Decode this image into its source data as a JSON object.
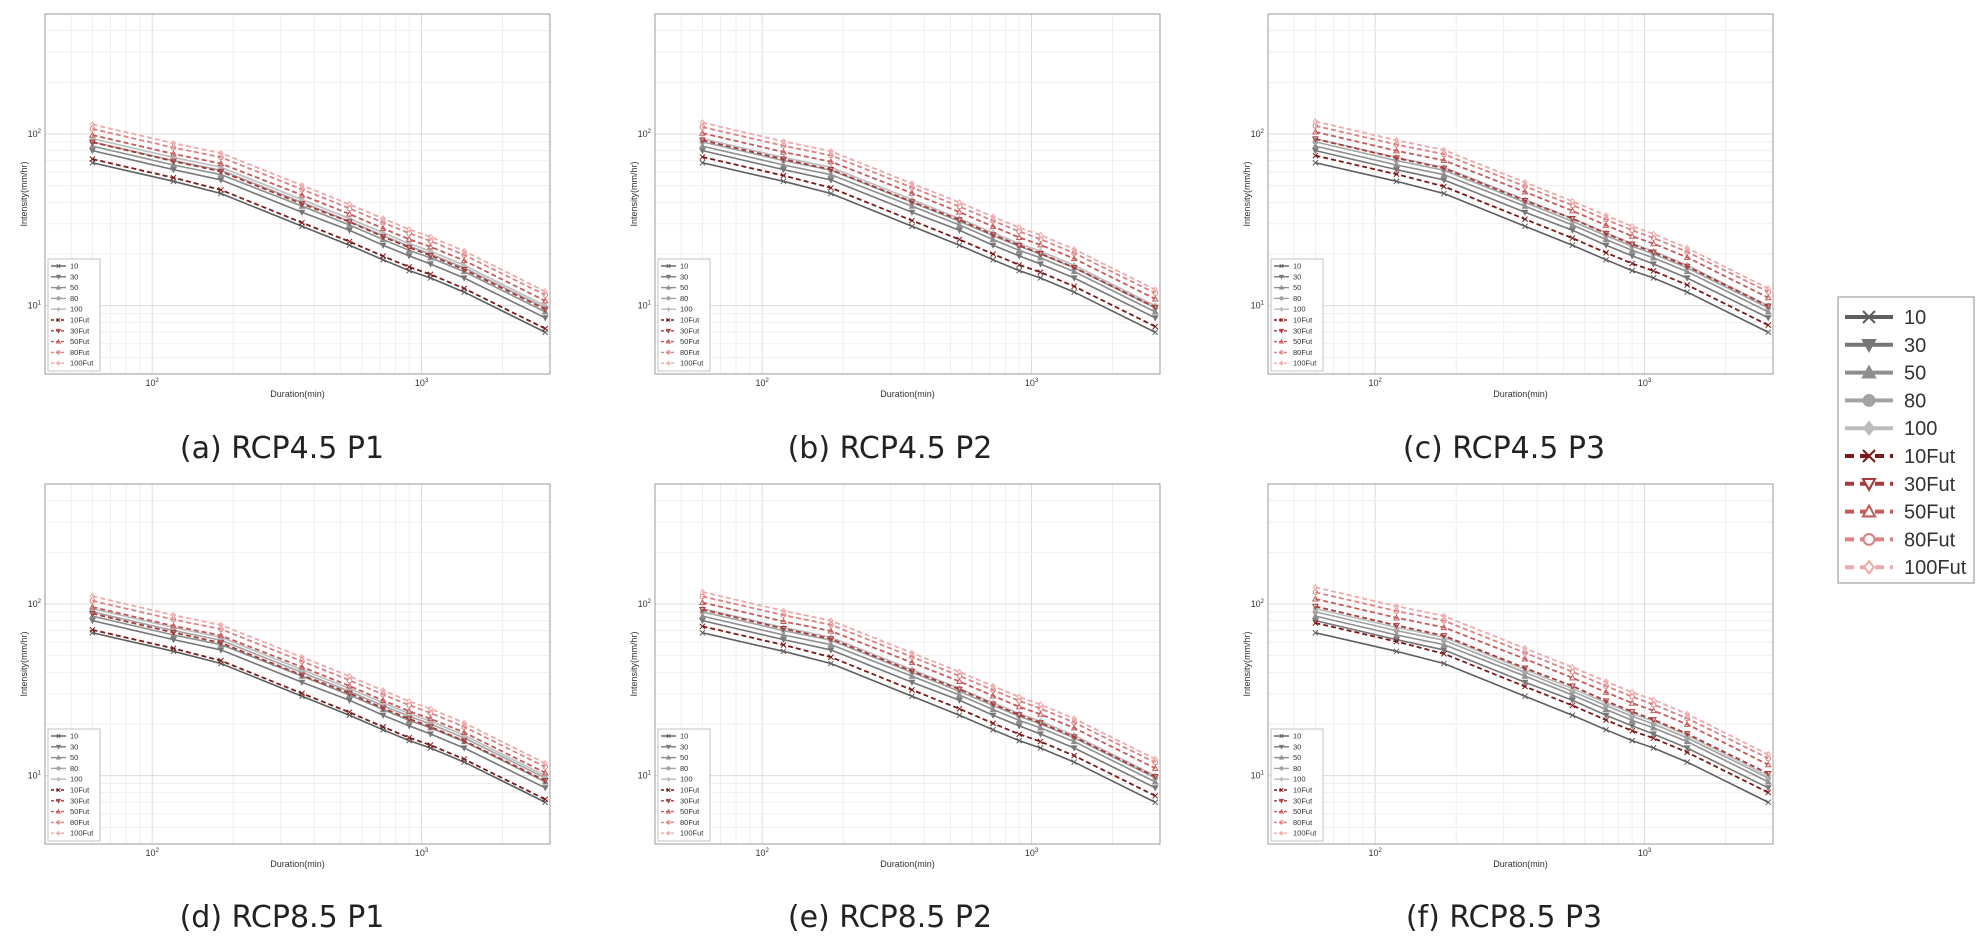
{
  "chart_data": {
    "type": "line",
    "scale": "log-log",
    "xlabel": "Duration(min)",
    "ylabel": "Intensity(mm/hr)",
    "xlim": [
      40,
      3000
    ],
    "ylim": [
      4,
      500
    ],
    "x": [
      60,
      120,
      180,
      360,
      540,
      720,
      900,
      1080,
      1440,
      2880
    ],
    "x_ticks": [
      {
        "value": 100,
        "base": "10",
        "exp": "2"
      },
      {
        "value": 1000,
        "base": "10",
        "exp": "3"
      }
    ],
    "y_ticks": [
      {
        "value": 10,
        "base": "10",
        "exp": "1"
      },
      {
        "value": 100,
        "base": "10",
        "exp": "2"
      }
    ],
    "legend_entries": [
      "10",
      "30",
      "50",
      "80",
      "100",
      "10Fut",
      "30Fut",
      "50Fut",
      "80Fut",
      "100Fut"
    ],
    "legend_location": "lower-left",
    "series_style": {
      "colors": [
        "#5e5e5e",
        "#777777",
        "#8e8e8e",
        "#a3a3a3",
        "#bcbcbc",
        "#7a1a1a",
        "#a83a3a",
        "#c65b5b",
        "#dd8282",
        "#eeaaaa"
      ],
      "markers": [
        "x",
        "v",
        "^",
        "o",
        "d",
        "x",
        "v",
        "^",
        "o",
        "d"
      ],
      "dashed": [
        false,
        false,
        false,
        false,
        false,
        true,
        true,
        true,
        true,
        true
      ]
    },
    "base_series": [
      {
        "name": "10",
        "values": [
          68,
          53,
          45,
          29,
          22.5,
          18.5,
          16,
          14.5,
          12,
          7
        ]
      },
      {
        "name": "30",
        "values": [
          80,
          62,
          54,
          35,
          27.5,
          22.5,
          19.5,
          17.5,
          14.5,
          8.5
        ]
      },
      {
        "name": "50",
        "values": [
          85,
          66,
          58,
          38,
          29.5,
          24.3,
          21,
          19,
          15.8,
          9.2
        ]
      },
      {
        "name": "80",
        "values": [
          90,
          70,
          61.5,
          40,
          31,
          25.6,
          22.2,
          20,
          16.6,
          9.7
        ]
      },
      {
        "name": "100",
        "values": [
          94,
          73,
          64,
          41.5,
          32.2,
          26.6,
          23,
          20.8,
          17.2,
          10
        ]
      }
    ],
    "panels": [
      {
        "caption": "(a) RCP4.5 P1",
        "future_factors": [
          1.05,
          1.12,
          1.16,
          1.19,
          1.21
        ]
      },
      {
        "caption": "(b) RCP4.5 P2",
        "future_factors": [
          1.08,
          1.15,
          1.19,
          1.22,
          1.24
        ]
      },
      {
        "caption": "(c) RCP4.5 P3",
        "future_factors": [
          1.1,
          1.17,
          1.21,
          1.24,
          1.26
        ]
      },
      {
        "caption": "(d) RCP8.5 P1",
        "future_factors": [
          1.04,
          1.1,
          1.13,
          1.16,
          1.18
        ]
      },
      {
        "caption": "(e) RCP8.5 P2",
        "future_factors": [
          1.09,
          1.16,
          1.2,
          1.23,
          1.25
        ]
      },
      {
        "caption": "(f) RCP8.5 P3",
        "future_factors": [
          1.14,
          1.21,
          1.26,
          1.3,
          1.33
        ]
      }
    ]
  }
}
